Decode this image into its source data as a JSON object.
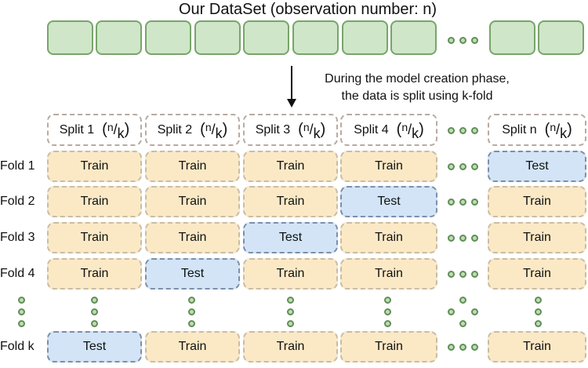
{
  "title": "Our DataSet (observation number: n)",
  "note_lines": [
    "During the model creation phase,",
    "the data is split using k-fold"
  ],
  "splits": [
    {
      "label": "Split 1",
      "n": "n",
      "k": "k"
    },
    {
      "label": "Split 2",
      "n": "n",
      "k": "k"
    },
    {
      "label": "Split 3",
      "n": "n",
      "k": "k"
    },
    {
      "label": "Split 4",
      "n": "n",
      "k": "k"
    },
    {
      "label": "Split n",
      "n": "n",
      "k": "k"
    }
  ],
  "folds": [
    {
      "label": "Fold 1",
      "cells": [
        "Train",
        "Train",
        "Train",
        "Train",
        "Test"
      ]
    },
    {
      "label": "Fold 2",
      "cells": [
        "Train",
        "Train",
        "Train",
        "Test",
        "Train"
      ]
    },
    {
      "label": "Fold 3",
      "cells": [
        "Train",
        "Train",
        "Test",
        "Train",
        "Train"
      ]
    },
    {
      "label": "Fold 4",
      "cells": [
        "Train",
        "Test",
        "Train",
        "Train",
        "Train"
      ]
    },
    {
      "label": "Fold k",
      "cells": [
        "Test",
        "Train",
        "Train",
        "Train",
        "Train"
      ]
    }
  ],
  "colors": {
    "dataset_fill": "#cfe6c8",
    "dataset_border": "#77a56a",
    "train_fill": "#fbe9c6",
    "test_fill": "#d2e4f6",
    "split_border": "#b9aaa0",
    "dot_border": "#5f8f55"
  },
  "icons": {
    "ellipsis": "dot-ellipsis-icon",
    "arrow": "down-arrow-icon"
  }
}
